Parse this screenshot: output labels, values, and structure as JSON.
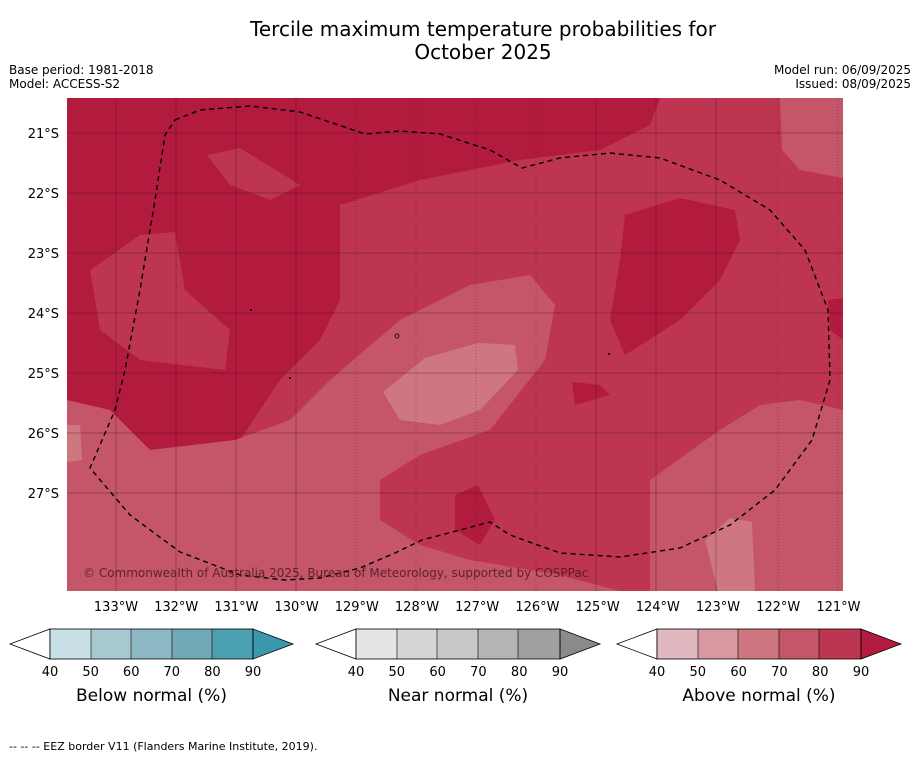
{
  "title_line1": "Tercile maximum temperature probabilities for",
  "title_line2": "October 2025",
  "base_period": "Base period: 1981-2018",
  "model": "Model: ACCESS-S2",
  "model_run": "Model run: 06/09/2025",
  "issued": "Issued: 08/09/2025",
  "copyright": "© Commonwealth of Australia 2025, Bureau of Meteorology, supported by COSPPac",
  "lat_ticks": [
    "21°S",
    "22°S",
    "23°S",
    "24°S",
    "25°S",
    "26°S",
    "27°S"
  ],
  "lon_ticks": [
    "133°W",
    "132°W",
    "131°W",
    "130°W",
    "129°W",
    "128°W",
    "127°W",
    "126°W",
    "125°W",
    "124°W",
    "123°W",
    "122°W",
    "121°W"
  ],
  "colors": {
    "above_40_50": "#e2b8c0",
    "above_50_60": "#d898a2",
    "above_60_70": "#cf7781",
    "above_70_80": "#c5566a",
    "above_80_90": "#bd3550",
    "above_90": "#b21b3e",
    "near": [
      "#e4e4e4",
      "#d6d6d6",
      "#c8c8c8",
      "#b5b5b5",
      "#a0a0a0",
      "#8a8a8a"
    ],
    "below": [
      "#c9e1e6",
      "#a8c8cf",
      "#8cb8c4",
      "#71a9b6",
      "#4a9fb0",
      "#3a97ac"
    ]
  },
  "legends": [
    {
      "label": "Below normal (%)",
      "ticks": [
        "40",
        "50",
        "60",
        "70",
        "80",
        "90"
      ]
    },
    {
      "label": "Near normal (%)",
      "ticks": [
        "40",
        "50",
        "60",
        "70",
        "80",
        "90"
      ]
    },
    {
      "label": "Above normal (%)",
      "ticks": [
        "40",
        "50",
        "60",
        "70",
        "80",
        "90"
      ]
    }
  ],
  "footnote": "-- -- -- EEZ border V11 (Flanders Marine Institute, 2019)."
}
